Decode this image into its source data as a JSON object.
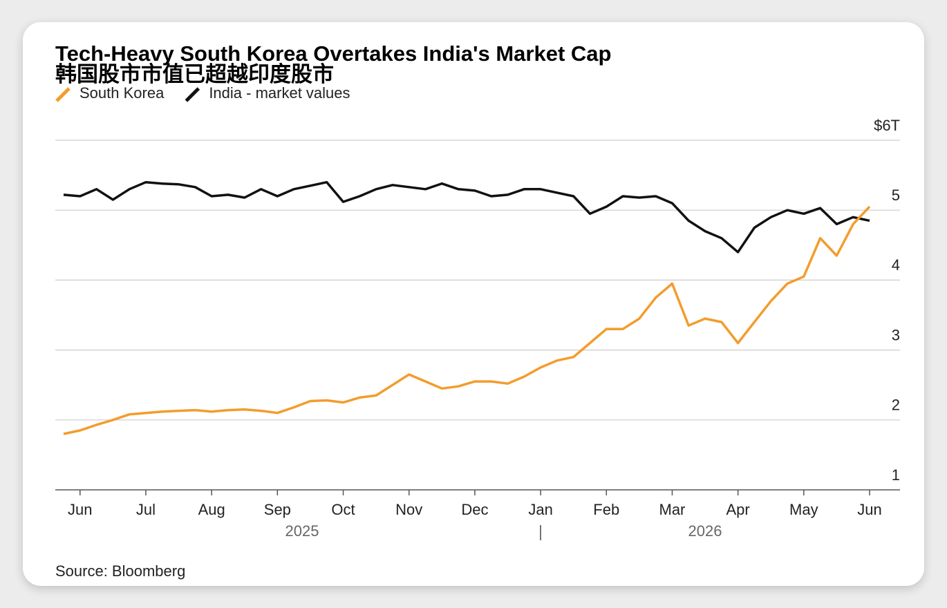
{
  "chart_data": {
    "type": "line",
    "title": "Tech-Heavy South Korea Overtakes India's Market Cap",
    "subtitle": "韩国股市市值已超越印度股市",
    "source": "Source: Bloomberg",
    "categories": [
      null,
      "Jun",
      null,
      null,
      null,
      "Jul",
      null,
      null,
      null,
      "Aug",
      null,
      null,
      null,
      "Sep",
      null,
      null,
      null,
      "Oct",
      null,
      null,
      null,
      "Nov",
      null,
      null,
      null,
      "Dec",
      null,
      null,
      null,
      "Jan",
      null,
      null,
      null,
      "Feb",
      null,
      null,
      null,
      "Mar",
      null,
      null,
      null,
      "Apr",
      null,
      null,
      null,
      "May",
      null,
      null,
      null,
      "Jun"
    ],
    "year_labels": [
      "2025",
      "2026"
    ],
    "series": [
      {
        "name": "South Korea",
        "color": "#f39c2c",
        "values": [
          1.8,
          1.85,
          1.93,
          2.0,
          2.08,
          2.1,
          2.12,
          2.13,
          2.14,
          2.12,
          2.14,
          2.15,
          2.13,
          2.1,
          2.18,
          2.27,
          2.28,
          2.25,
          2.32,
          2.35,
          2.5,
          2.65,
          2.55,
          2.45,
          2.48,
          2.55,
          2.55,
          2.52,
          2.62,
          2.75,
          2.85,
          2.9,
          3.1,
          3.3,
          3.3,
          3.45,
          3.75,
          3.95,
          3.35,
          3.45,
          3.4,
          3.1,
          3.4,
          3.7,
          3.95,
          4.05,
          4.6,
          4.35,
          4.8,
          5.05
        ]
      },
      {
        "name": "India - market values",
        "color": "#111111",
        "values": [
          5.22,
          5.2,
          5.3,
          5.15,
          5.3,
          5.4,
          5.38,
          5.37,
          5.33,
          5.2,
          5.22,
          5.18,
          5.3,
          5.2,
          5.3,
          5.35,
          5.4,
          5.12,
          5.2,
          5.3,
          5.36,
          5.33,
          5.3,
          5.38,
          5.3,
          5.28,
          5.2,
          5.22,
          5.3,
          5.3,
          5.25,
          5.2,
          4.95,
          5.05,
          5.2,
          5.18,
          5.2,
          5.1,
          4.85,
          4.7,
          4.6,
          4.4,
          4.75,
          4.9,
          5.0,
          4.95,
          5.03,
          4.8,
          4.9,
          4.85
        ]
      }
    ],
    "ylim": [
      1,
      6
    ],
    "yticks": [
      1,
      2,
      3,
      4,
      5,
      {
        "value": 6,
        "label": "$6T"
      }
    ],
    "grid": true
  }
}
